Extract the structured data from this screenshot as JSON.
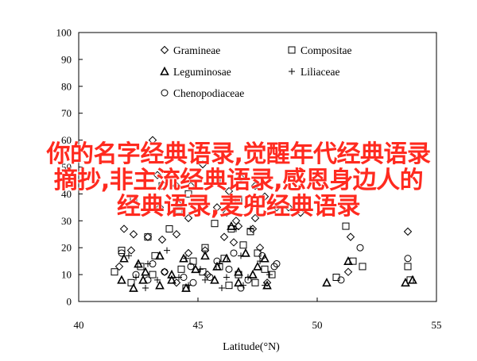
{
  "chart_data": {
    "type": "scatter",
    "xlabel": "Latitude(°N)",
    "ylabel": "",
    "xlim": [
      40,
      55
    ],
    "ylim": [
      0,
      100
    ],
    "xticks": [
      40,
      45,
      50,
      55
    ],
    "yticks": [
      0,
      10,
      20,
      30,
      40,
      50,
      60,
      70,
      80,
      90,
      100
    ],
    "grid": false,
    "legend_position": "top-center",
    "series": [
      {
        "name": "Gramineae",
        "marker": "diamond",
        "points": [
          [
            43.1,
            60
          ],
          [
            45.2,
            51
          ],
          [
            43.3,
            47
          ],
          [
            44.1,
            43
          ],
          [
            44.7,
            43
          ],
          [
            46.3,
            41
          ],
          [
            46.8,
            46
          ],
          [
            47.4,
            43
          ],
          [
            47.8,
            39
          ],
          [
            48.3,
            35
          ],
          [
            48.8,
            35
          ],
          [
            49.3,
            33
          ],
          [
            43.4,
            35
          ],
          [
            44.2,
            36
          ],
          [
            45.8,
            35
          ],
          [
            46.2,
            33
          ],
          [
            44.6,
            31
          ],
          [
            46.6,
            30
          ],
          [
            47.4,
            31
          ],
          [
            41.9,
            27
          ],
          [
            46.7,
            28
          ],
          [
            47.3,
            27
          ],
          [
            42.3,
            25
          ],
          [
            42.9,
            24
          ],
          [
            43.5,
            23
          ],
          [
            44.1,
            25
          ],
          [
            46.1,
            24
          ],
          [
            51.4,
            24
          ],
          [
            46.5,
            22
          ],
          [
            42.2,
            19
          ],
          [
            44.6,
            18
          ],
          [
            45.3,
            19
          ],
          [
            47.6,
            20
          ],
          [
            41.7,
            13
          ],
          [
            43.6,
            11
          ],
          [
            45.4,
            10
          ],
          [
            51.3,
            11
          ],
          [
            53.8,
            26
          ],
          [
            44.1,
            7
          ],
          [
            47.9,
            7
          ]
        ]
      },
      {
        "name": "Compositae",
        "marker": "square",
        "points": [
          [
            43.5,
            43
          ],
          [
            45.8,
            45
          ],
          [
            44.6,
            40
          ],
          [
            42.3,
            38
          ],
          [
            46.7,
            38
          ],
          [
            44.2,
            34
          ],
          [
            45.7,
            29
          ],
          [
            46.4,
            27
          ],
          [
            43.8,
            27
          ],
          [
            47.2,
            26
          ],
          [
            42.9,
            24
          ],
          [
            45.3,
            20
          ],
          [
            46.9,
            21
          ],
          [
            41.8,
            19
          ],
          [
            43.2,
            17
          ],
          [
            44.8,
            15
          ],
          [
            46.1,
            16
          ],
          [
            47.5,
            18
          ],
          [
            42.6,
            13
          ],
          [
            44.3,
            12
          ],
          [
            45.9,
            13
          ],
          [
            47.8,
            12
          ],
          [
            41.5,
            11
          ],
          [
            43.1,
            10
          ],
          [
            45.2,
            11
          ],
          [
            46.7,
            10
          ],
          [
            48.1,
            10
          ],
          [
            42.2,
            7
          ],
          [
            44.5,
            5
          ],
          [
            46.3,
            6
          ],
          [
            47.4,
            7
          ],
          [
            51.2,
            28
          ],
          [
            51.5,
            15
          ],
          [
            51.9,
            13
          ],
          [
            53.8,
            13
          ],
          [
            53.9,
            8
          ],
          [
            50.8,
            9
          ]
        ]
      },
      {
        "name": "Leguminosae",
        "marker": "triangle",
        "points": [
          [
            41.9,
            16
          ],
          [
            42.5,
            14
          ],
          [
            43.4,
            17
          ],
          [
            44.4,
            16
          ],
          [
            45.3,
            17
          ],
          [
            46.2,
            16
          ],
          [
            47.0,
            18
          ],
          [
            47.8,
            16
          ],
          [
            42.8,
            11
          ],
          [
            43.9,
            10
          ],
          [
            44.9,
            12
          ],
          [
            45.8,
            13
          ],
          [
            46.7,
            11
          ],
          [
            47.5,
            13
          ],
          [
            41.8,
            8
          ],
          [
            42.7,
            8
          ],
          [
            43.4,
            6
          ],
          [
            44.5,
            5
          ],
          [
            45.7,
            8
          ],
          [
            46.7,
            7
          ],
          [
            47.9,
            6
          ],
          [
            42.3,
            5
          ],
          [
            43.9,
            8
          ],
          [
            46.4,
            28
          ],
          [
            50.4,
            7
          ],
          [
            51.3,
            15
          ],
          [
            54.0,
            8
          ],
          [
            53.7,
            7
          ],
          [
            47.3,
            10
          ]
        ]
      },
      {
        "name": "Liliaceae",
        "marker": "plus",
        "points": [
          [
            42.1,
            17
          ],
          [
            42.9,
            14
          ],
          [
            43.7,
            19
          ],
          [
            44.5,
            16
          ],
          [
            45.1,
            12
          ],
          [
            45.9,
            14
          ],
          [
            46.8,
            17
          ],
          [
            47.6,
            15
          ],
          [
            42.4,
            9
          ],
          [
            43.3,
            8
          ],
          [
            44.2,
            9
          ],
          [
            45.3,
            8
          ],
          [
            46.2,
            9
          ],
          [
            47.1,
            9
          ],
          [
            48.0,
            10
          ],
          [
            42.8,
            5
          ],
          [
            44.6,
            6
          ],
          [
            46.0,
            5
          ],
          [
            46.9,
            6
          ],
          [
            47.8,
            6
          ],
          [
            46.6,
            27
          ],
          [
            47.2,
            27
          ]
        ]
      },
      {
        "name": "Chenopodiaceae",
        "marker": "circle",
        "points": [
          [
            41.8,
            18
          ],
          [
            43.1,
            14
          ],
          [
            44.7,
            13
          ],
          [
            45.8,
            15
          ],
          [
            46.5,
            18
          ],
          [
            47.7,
            17
          ],
          [
            48.3,
            14
          ],
          [
            42.4,
            10
          ],
          [
            43.6,
            11
          ],
          [
            44.4,
            9
          ],
          [
            45.5,
            9
          ],
          [
            46.3,
            12
          ],
          [
            47.1,
            8
          ],
          [
            48.2,
            13
          ],
          [
            42.9,
            8
          ],
          [
            44.8,
            7
          ],
          [
            46.8,
            5
          ],
          [
            51.0,
            8
          ],
          [
            51.8,
            20
          ],
          [
            53.8,
            16
          ]
        ]
      }
    ]
  },
  "overlay": {
    "lines": [
      "你的名字经典语录,觉醒年代经典语录",
      "摘抄,非主流经典语录,感恩身边人的",
      "经典语录,麦兜经典语录"
    ]
  }
}
